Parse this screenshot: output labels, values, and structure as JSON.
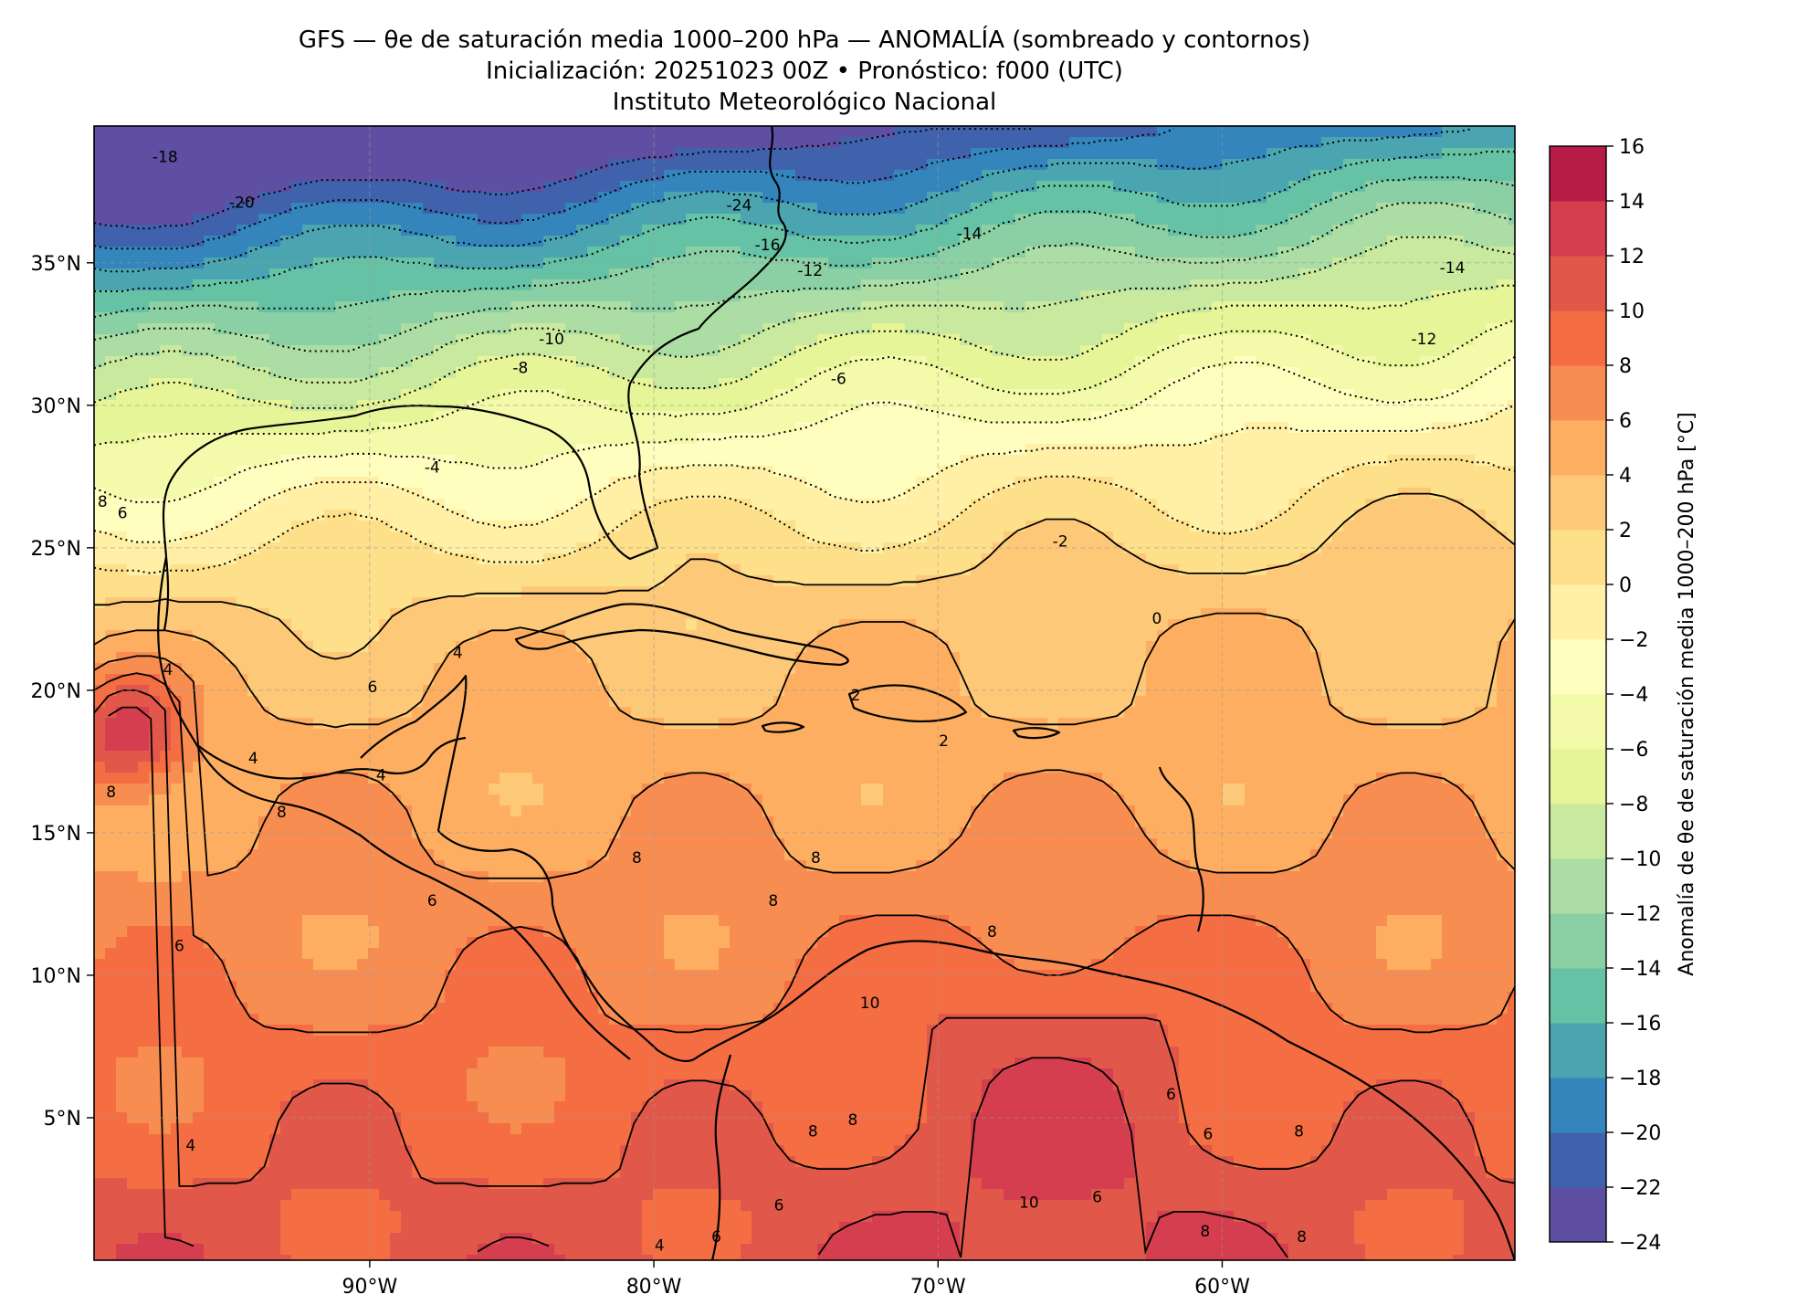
{
  "title": {
    "line1": "GFS — θe de saturación media 1000–200 hPa — ANOMALÍA (sombreado y contornos)",
    "line2": "Inicialización: 20251023 00Z   •   Pronóstico: f000 (UTC)",
    "line3": "Instituto Meteorológico Nacional"
  },
  "map": {
    "lon_range": [
      -99.7,
      -49.7
    ],
    "lat_range": [
      0.0,
      39.8
    ],
    "lon_ticks": [
      -90,
      -80,
      -70,
      -60
    ],
    "lon_tick_labels": [
      "90°W",
      "80°W",
      "70°W",
      "60°W"
    ],
    "lat_ticks": [
      5,
      10,
      15,
      20,
      25,
      30,
      35
    ],
    "lat_tick_labels": [
      "5°N",
      "10°N",
      "15°N",
      "20°N",
      "25°N",
      "30°N",
      "35°N"
    ],
    "gridlines": true
  },
  "chart_data": {
    "type": "heatmap",
    "variable": "Anomalía de θe de saturación media 1000–200 hPa",
    "units": "°C",
    "colorbar_label": "Anomalía de θe de saturación media 1000–200 hPa [°C]",
    "levels": [
      -24,
      -22,
      -20,
      -18,
      -16,
      -14,
      -12,
      -10,
      -8,
      -6,
      -4,
      -2,
      0,
      2,
      4,
      6,
      8,
      10,
      12,
      14,
      16
    ],
    "level_colors": [
      "#5e4fa2",
      "#4062ad",
      "#3385bc",
      "#4ba5b1",
      "#66c2a5",
      "#8bd0a4",
      "#abdda4",
      "#c9e99e",
      "#e6f598",
      "#f3faaa",
      "#fffebe",
      "#fff0a6",
      "#fee08b",
      "#fdc877",
      "#fdae61",
      "#f88d52",
      "#f46d43",
      "#e15749",
      "#d53e4f",
      "#b71c47",
      "#9e0142"
    ],
    "colorbar_ticks": [
      16,
      14,
      12,
      10,
      8,
      6,
      4,
      2,
      0,
      -2,
      -4,
      -6,
      -8,
      -10,
      -12,
      -14,
      -16,
      -18,
      -20,
      -22,
      -24
    ],
    "contour_labels": [
      {
        "text": "-18",
        "lon": -97.2,
        "lat": 38.7
      },
      {
        "text": "-24",
        "lon": -77.0,
        "lat": 37.0
      },
      {
        "text": "-20",
        "lon": -94.5,
        "lat": 37.1
      },
      {
        "text": "-14",
        "lon": -68.9,
        "lat": 36.0
      },
      {
        "text": "-16",
        "lon": -76.0,
        "lat": 35.6
      },
      {
        "text": "-12",
        "lon": -74.5,
        "lat": 34.7
      },
      {
        "text": "-14",
        "lon": -51.9,
        "lat": 34.8
      },
      {
        "text": "-10",
        "lon": -83.6,
        "lat": 32.3
      },
      {
        "text": "-12",
        "lon": -52.9,
        "lat": 32.3
      },
      {
        "text": "-8",
        "lon": -84.7,
        "lat": 31.3
      },
      {
        "text": "-6",
        "lon": -73.5,
        "lat": 30.9
      },
      {
        "text": "-4",
        "lon": -87.8,
        "lat": 27.8
      },
      {
        "text": "-2",
        "lon": -65.7,
        "lat": 25.2
      },
      {
        "text": "0",
        "lon": -62.3,
        "lat": 22.5
      },
      {
        "text": "4",
        "lon": -86.9,
        "lat": 21.3
      },
      {
        "text": "6",
        "lon": -89.9,
        "lat": 20.1
      },
      {
        "text": "2",
        "lon": -72.9,
        "lat": 19.8
      },
      {
        "text": "2",
        "lon": -69.8,
        "lat": 18.2
      },
      {
        "text": "4",
        "lon": -97.1,
        "lat": 20.7
      },
      {
        "text": "4",
        "lon": -94.1,
        "lat": 17.6
      },
      {
        "text": "4",
        "lon": -89.6,
        "lat": 17.0
      },
      {
        "text": "8",
        "lon": -99.1,
        "lat": 16.4
      },
      {
        "text": "8",
        "lon": -93.1,
        "lat": 15.7
      },
      {
        "text": "8",
        "lon": -80.6,
        "lat": 14.1
      },
      {
        "text": "8",
        "lon": -74.3,
        "lat": 14.1
      },
      {
        "text": "8",
        "lon": -75.8,
        "lat": 12.6
      },
      {
        "text": "8",
        "lon": -68.1,
        "lat": 11.5
      },
      {
        "text": "6",
        "lon": -87.8,
        "lat": 12.6
      },
      {
        "text": "6",
        "lon": -96.7,
        "lat": 11.0
      },
      {
        "text": "6",
        "lon": -98.7,
        "lat": 26.2
      },
      {
        "text": "8",
        "lon": -99.4,
        "lat": 26.6
      },
      {
        "text": "10",
        "lon": -72.4,
        "lat": 9.0
      },
      {
        "text": "8",
        "lon": -74.4,
        "lat": 4.5
      },
      {
        "text": "8",
        "lon": -73.0,
        "lat": 4.9
      },
      {
        "text": "6",
        "lon": -61.8,
        "lat": 5.8
      },
      {
        "text": "6",
        "lon": -60.5,
        "lat": 4.4
      },
      {
        "text": "8",
        "lon": -57.3,
        "lat": 4.5
      },
      {
        "text": "4",
        "lon": -96.3,
        "lat": 4.0
      },
      {
        "text": "6",
        "lon": -75.6,
        "lat": 1.9
      },
      {
        "text": "10",
        "lon": -66.8,
        "lat": 2.0
      },
      {
        "text": "6",
        "lon": -64.4,
        "lat": 2.2
      },
      {
        "text": "8",
        "lon": -60.6,
        "lat": 1.0
      },
      {
        "text": "8",
        "lon": -57.2,
        "lat": 0.8
      },
      {
        "text": "4",
        "lon": -79.8,
        "lat": 0.5
      },
      {
        "text": "6",
        "lon": -77.8,
        "lat": 0.8
      }
    ]
  }
}
